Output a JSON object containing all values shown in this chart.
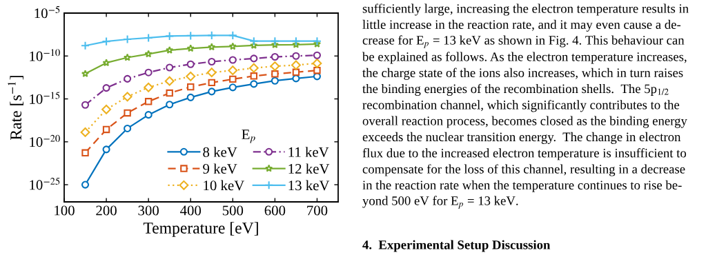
{
  "chart_data": {
    "type": "line",
    "xlabel": "Temperature [eV]",
    "ylabel": "Rate [s$^{−1}$]",
    "legend_title": "E$_{p}$",
    "x": [
      150,
      200,
      250,
      300,
      350,
      400,
      450,
      500,
      550,
      600,
      650,
      700
    ],
    "series": [
      {
        "name": "8 keV",
        "color": "#0072bd",
        "marker": "circle",
        "line_style": "solid",
        "values": [
          1e-25,
          1.3e-21,
          3.6e-19,
          1.4e-17,
          2.2e-16,
          1.5e-15,
          7.2e-15,
          2.2e-14,
          5.5e-14,
          1.3e-13,
          2.4e-13,
          4.2e-13
        ]
      },
      {
        "name": "9 keV",
        "color": "#d95319",
        "marker": "square",
        "line_style": "dashed",
        "values": [
          5.2e-22,
          2.7e-19,
          2.3e-17,
          5e-16,
          4.8e-15,
          2.5e-14,
          7.9e-14,
          2e-13,
          4.7e-13,
          8.1e-13,
          1.3e-12,
          2.1e-12
        ]
      },
      {
        "name": "10 keV",
        "color": "#edb120",
        "marker": "diamond",
        "line_style": "dotted",
        "values": [
          1.3e-19,
          5.9e-17,
          1.8e-15,
          2.2e-14,
          1.2e-13,
          4.2e-13,
          1.2e-12,
          2.1e-12,
          4e-12,
          6.5e-12,
          8.7e-12,
          1.4e-11
        ]
      },
      {
        "name": "11 keV",
        "color": "#7e2f8e",
        "marker": "circle",
        "line_style": "dashdot",
        "values": [
          2e-16,
          1.9e-14,
          2.2e-13,
          1.2e-12,
          4.5e-12,
          1.1e-11,
          2.2e-11,
          3.5e-11,
          5.1e-11,
          7.9e-11,
          1e-10,
          1.2e-10
        ]
      },
      {
        "name": "12 keV",
        "color": "#77ac30",
        "marker": "star",
        "line_style": "solid",
        "values": [
          8.5e-13,
          1.6e-11,
          6.6e-11,
          1.7e-10,
          4.7e-10,
          7.6e-10,
          1.1e-09,
          1.3e-09,
          1.7e-09,
          2e-09,
          2.1e-09,
          2.5e-09
        ]
      },
      {
        "name": "13 keV",
        "color": "#4dbeee",
        "marker": "cross",
        "line_style": "solid",
        "values": [
          1.6e-09,
          5e-09,
          8.9e-09,
          1.3e-08,
          2.1e-08,
          2.3e-08,
          2.5e-08,
          2.5e-08,
          5.4e-09,
          5.4e-09,
          5.4e-09,
          5.4e-09
        ]
      }
    ],
    "log": "y",
    "xlim": [
      100,
      750
    ],
    "xticks": [
      100,
      200,
      300,
      400,
      500,
      600,
      700
    ],
    "ylim": [
      1e-27,
      1e-05
    ],
    "yticks": [
      {
        "value": 1e-25,
        "label": "10$^{−25}$"
      },
      {
        "value": 1e-20,
        "label": "10$^{−20}$"
      },
      {
        "value": 1e-15,
        "label": "10$^{−15}$"
      },
      {
        "value": 1e-10,
        "label": "10$^{−10}$"
      },
      {
        "value": 1e-05,
        "label": "10$^{−5}$"
      }
    ],
    "grid": false,
    "legend": "bottom right",
    "annotations": [
      "sufficiently large, increasing the electron temperature results in",
      "little increase in the reaction rate, and it may even cause a de-",
      "crease for E$_{p}$ = 13 keV as shown in Fig. 4. This behaviour can",
      "be explained as follows. As the electron temperature increases,",
      "the charge state of the ions also increases, which in turn raises",
      "the binding energies of the recombination shells.  The 5p$_{1/2}$",
      "recombination channel, which significantly contributes to the",
      "overall reaction process, becomes closed as the binding energy",
      "exceeds the nuclear transition energy.  The change in electron",
      "flux due to the increased electron temperature is insufficient to",
      "compensate for the loss of this channel, resulting in a decrease",
      "in the reaction rate when the temperature continues to rise be-",
      "yond 500 eV for E$_{p}$ = 13 keV.",
      "4.  Experimental Setup Discussion"
    ]
  }
}
